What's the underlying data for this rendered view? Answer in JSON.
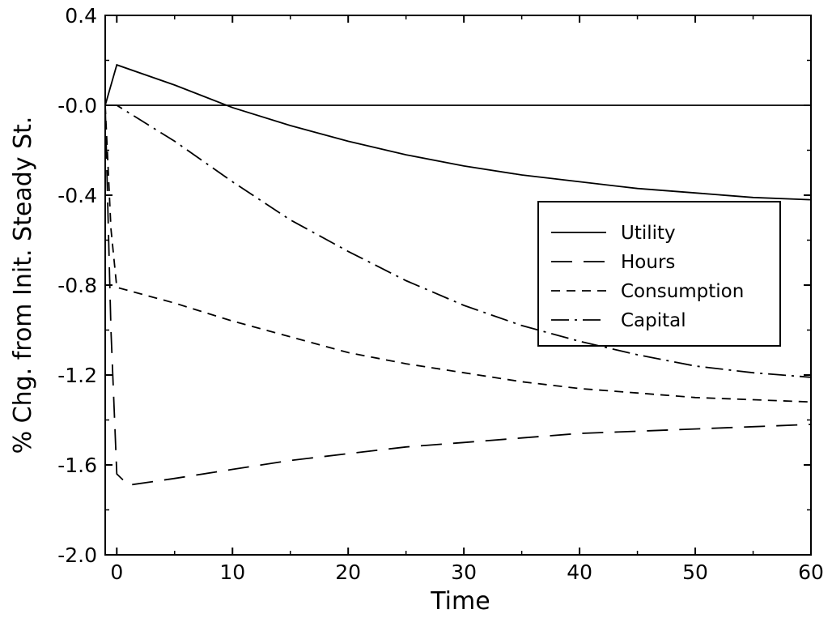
{
  "chart_data": {
    "type": "line",
    "title": "",
    "xlabel": "Time",
    "ylabel": "% Chg. from Init. Steady St.",
    "xlim": [
      -1,
      60
    ],
    "ylim": [
      -2.0,
      0.4
    ],
    "xticks": [
      0,
      10,
      20,
      30,
      40,
      50,
      60
    ],
    "xtick_labels": [
      "0",
      "10",
      "20",
      "30",
      "40",
      "50",
      "60"
    ],
    "yticks": [
      0.4,
      0.0,
      -0.4,
      -0.8,
      -1.2,
      -1.6,
      -2.0
    ],
    "ytick_labels": [
      "0.4",
      "-0.0",
      "-0.4",
      "-0.8",
      "-1.2",
      "-1.6",
      "-2.0"
    ],
    "grid": false,
    "legend_position": "right",
    "reference_line_y": 0.0,
    "series": [
      {
        "name": "Utility",
        "style": "solid",
        "x": [
          -1,
          0,
          5,
          10,
          15,
          20,
          25,
          30,
          35,
          40,
          45,
          50,
          55,
          60
        ],
        "y": [
          0.0,
          0.18,
          0.09,
          -0.01,
          -0.09,
          -0.16,
          -0.22,
          -0.27,
          -0.31,
          -0.34,
          -0.37,
          -0.39,
          -0.41,
          -0.42
        ]
      },
      {
        "name": "Hours",
        "style": "long-dash",
        "x": [
          -1,
          -0.5,
          0,
          1,
          5,
          10,
          15,
          20,
          25,
          30,
          35,
          40,
          45,
          50,
          55,
          60
        ],
        "y": [
          0.0,
          -1.0,
          -1.64,
          -1.69,
          -1.66,
          -1.62,
          -1.58,
          -1.55,
          -1.52,
          -1.5,
          -1.48,
          -1.46,
          -1.45,
          -1.44,
          -1.43,
          -1.42
        ]
      },
      {
        "name": "Consumption",
        "style": "short-dash",
        "x": [
          -1,
          -0.5,
          0,
          5,
          10,
          15,
          20,
          25,
          30,
          35,
          40,
          45,
          50,
          55,
          60
        ],
        "y": [
          0.0,
          -0.55,
          -0.81,
          -0.88,
          -0.96,
          -1.03,
          -1.1,
          -1.15,
          -1.19,
          -1.23,
          -1.26,
          -1.28,
          -1.3,
          -1.31,
          -1.32
        ]
      },
      {
        "name": "Capital",
        "style": "dash-dot",
        "x": [
          -1,
          0,
          5,
          10,
          15,
          20,
          25,
          30,
          35,
          40,
          45,
          50,
          55,
          60
        ],
        "y": [
          0.0,
          0.0,
          -0.16,
          -0.34,
          -0.51,
          -0.65,
          -0.78,
          -0.89,
          -0.98,
          -1.05,
          -1.11,
          -1.16,
          -1.19,
          -1.21
        ]
      }
    ]
  }
}
